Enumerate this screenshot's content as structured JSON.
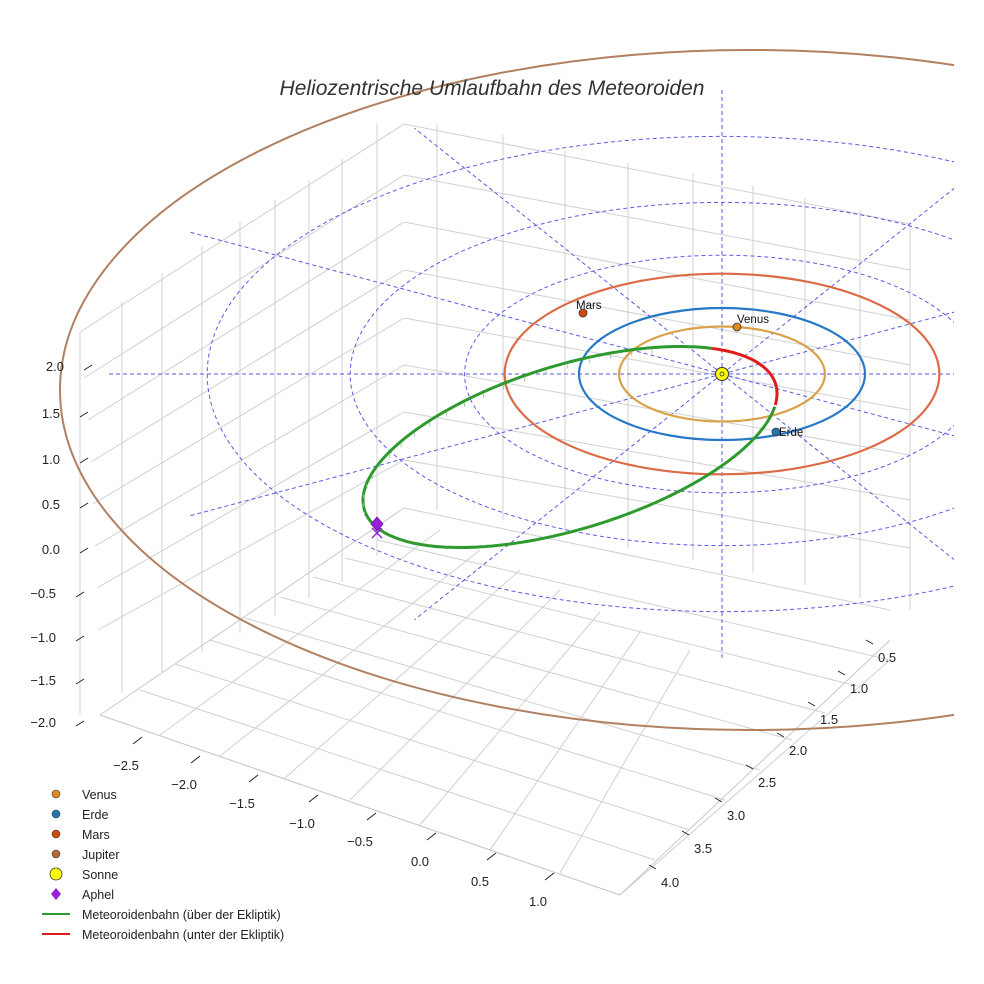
{
  "chart_data": {
    "type": "scatter",
    "title": "Heliozentrische Umlaufbahn des Meteoroiden",
    "z_axis": {
      "ticks": [
        "2.0",
        "1.5",
        "1.0",
        "0.5",
        "0.0",
        "−0.5",
        "−1.0",
        "−1.5",
        "−2.0"
      ],
      "range": [
        -2.0,
        2.0
      ]
    },
    "x_axis": {
      "ticks": [
        "−2.5",
        "−2.0",
        "−1.5",
        "−1.0",
        "−0.5",
        "0.0",
        "0.5",
        "1.0"
      ],
      "range": [
        -2.75,
        1.25
      ]
    },
    "y_axis": {
      "ticks": [
        "0.5",
        "1.0",
        "1.5",
        "2.0",
        "2.5",
        "3.0",
        "3.5",
        "4.0"
      ],
      "range": [
        0.25,
        4.25
      ]
    },
    "bodies": [
      {
        "name": "Venus",
        "label": "Venus",
        "color": "#e08a1e",
        "orbit_color": "#d9a24a",
        "orbit_radius_au": 0.72
      },
      {
        "name": "Erde",
        "label": "Erde",
        "color": "#1f77b4",
        "orbit_color": "#2878c8",
        "orbit_radius_au": 1.0
      },
      {
        "name": "Mars",
        "label": "Mars",
        "color": "#d14a0c",
        "orbit_color": "#dc6a45",
        "orbit_radius_au": 1.52
      },
      {
        "name": "Jupiter",
        "label": "",
        "color": "#b5683a",
        "orbit_color": "#b08060",
        "orbit_radius_au": 5.2
      }
    ],
    "sun": {
      "name": "Sonne",
      "color": "#ffff00"
    },
    "aphel": {
      "name": "Aphel",
      "color": "#9a1fd8"
    },
    "series": [
      {
        "name": "Meteoroidenbahn (über der Ekliptik)",
        "color": "#2e9a2e"
      },
      {
        "name": "Meteoroidenbahn (unter der Ekliptik)",
        "color": "#e01b1b"
      }
    ],
    "legend_position": "bottom-left"
  }
}
